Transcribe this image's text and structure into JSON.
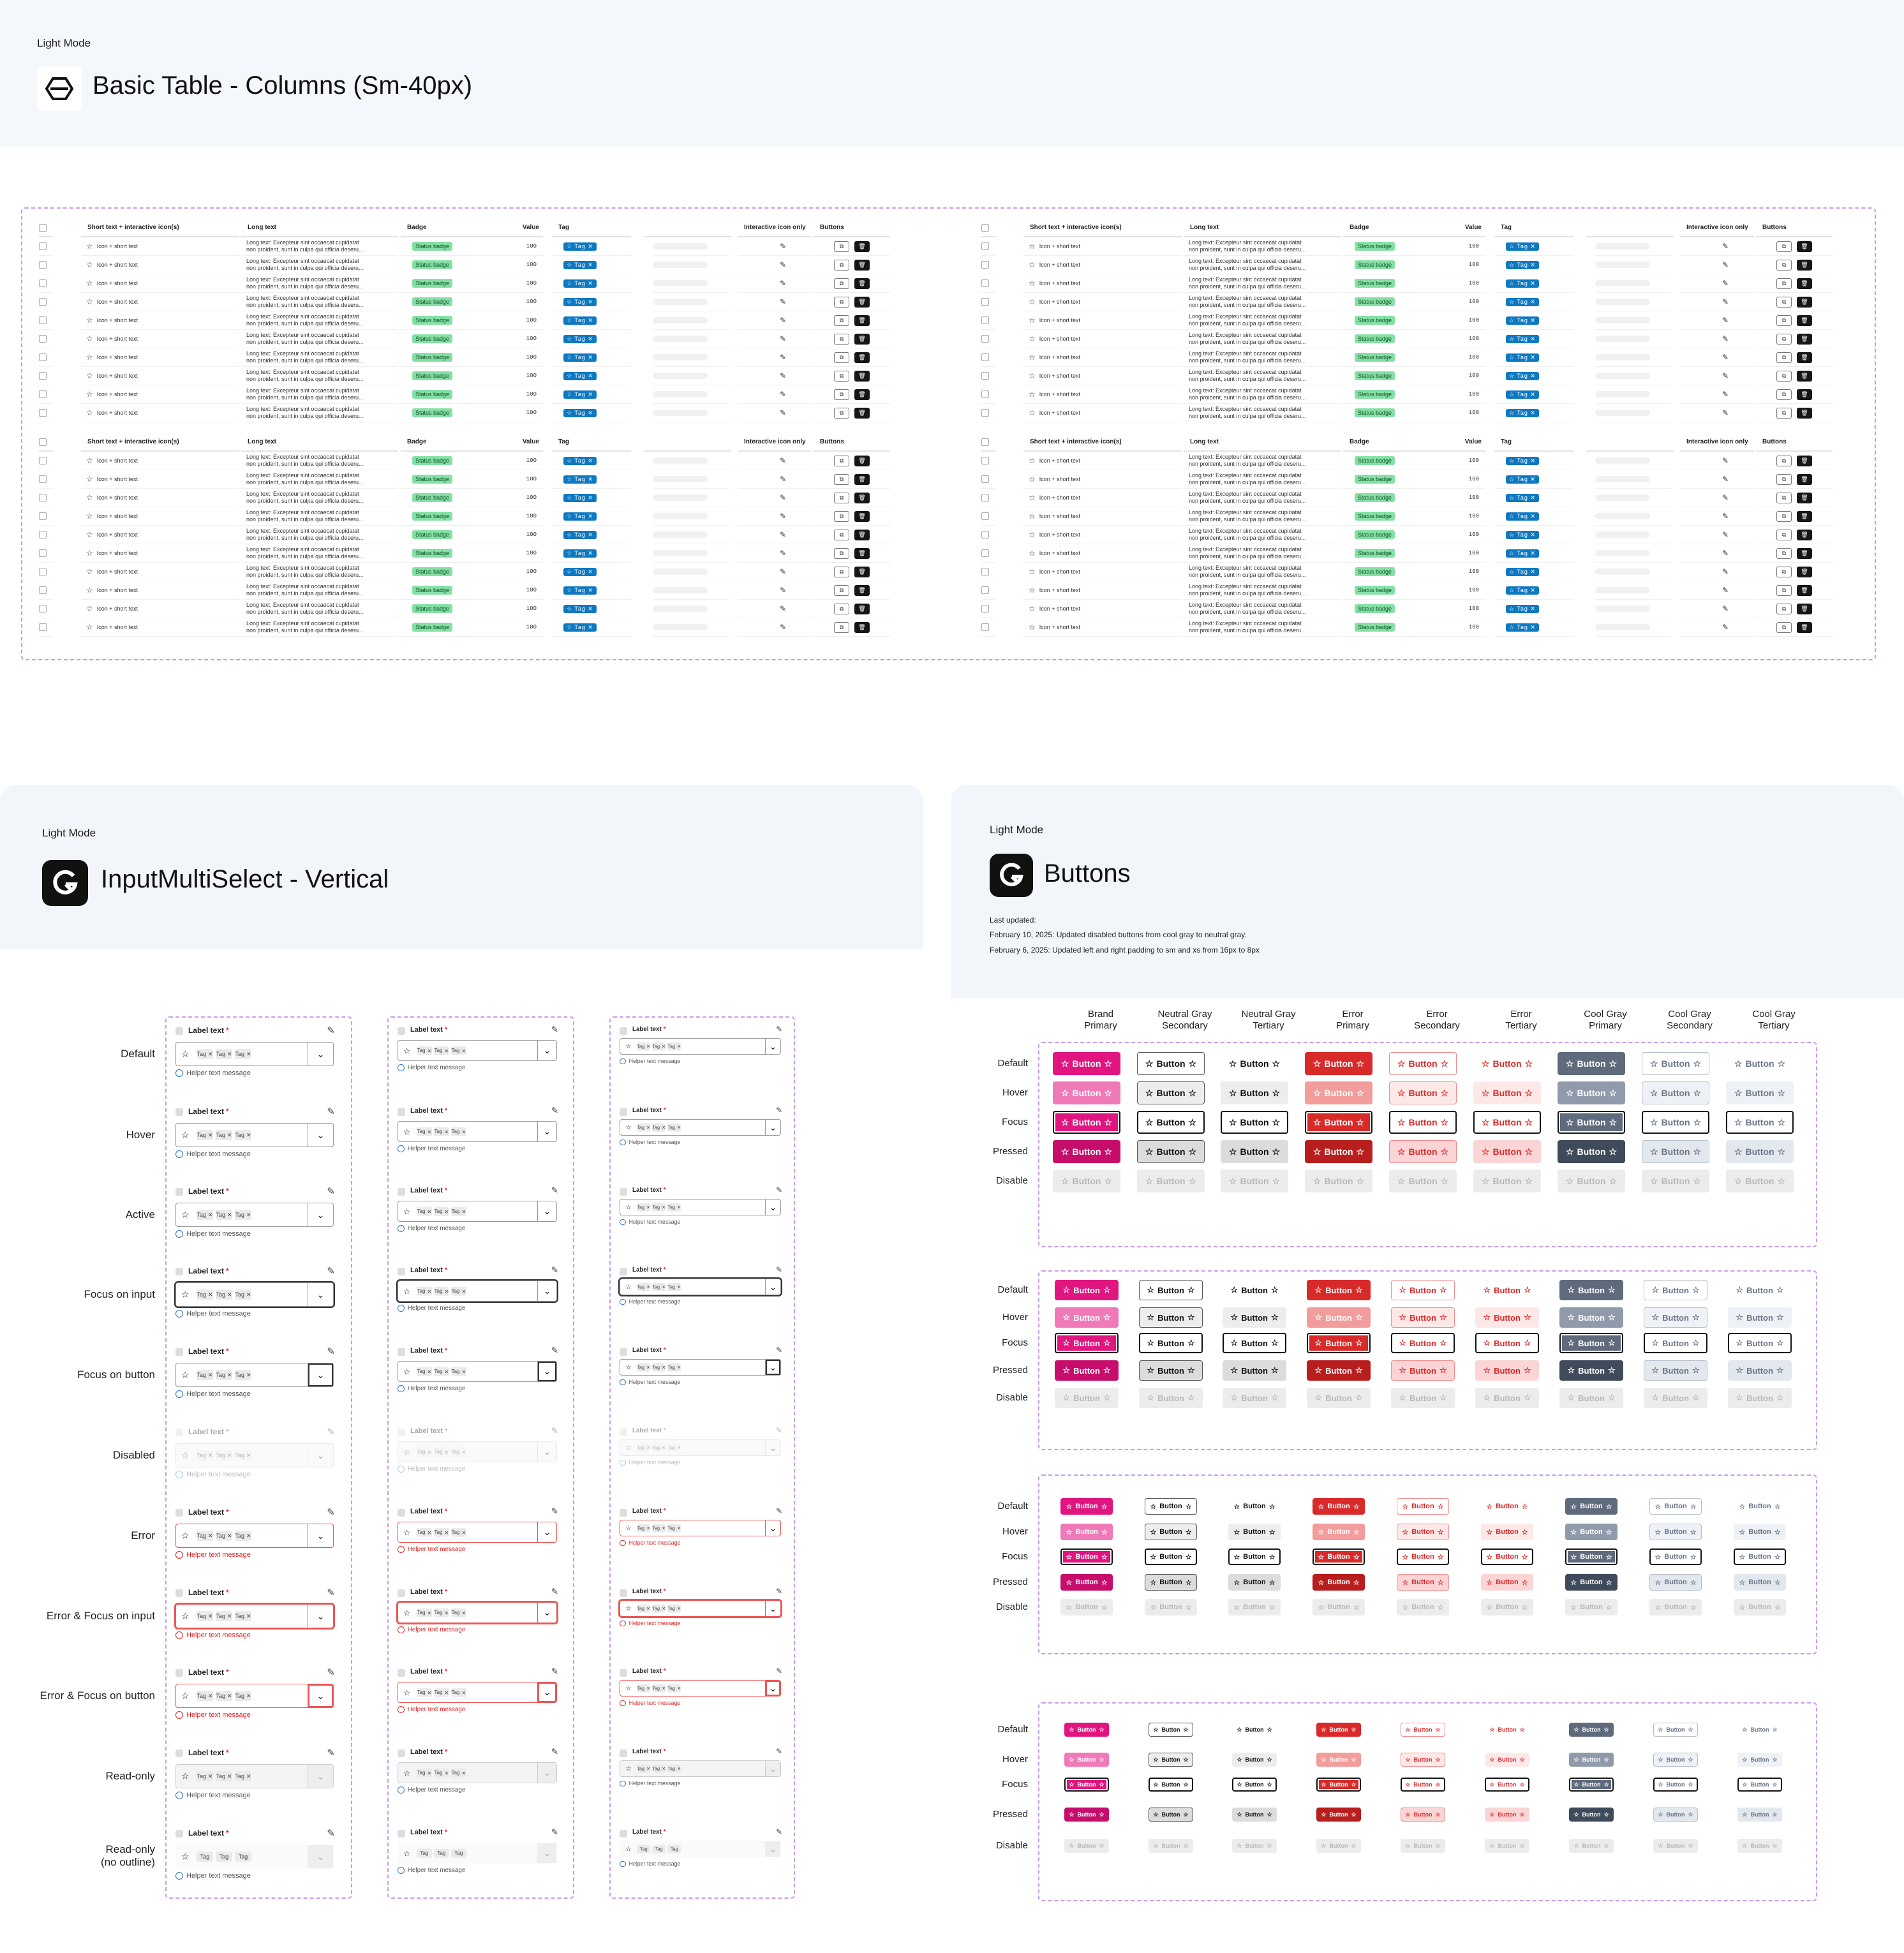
{
  "top": {
    "mode": "Light Mode",
    "title": "Basic Table - Columns (Sm-40px)"
  },
  "table": {
    "headers": [
      "Short text + interactive icon(s)",
      "Long text",
      "Badge",
      "Value",
      "Tag",
      "Interactive icon only",
      "Buttons"
    ],
    "cell_short": "Icon + short text",
    "cell_long_1": "Long text: Excepteur sint occaecat cupidatat",
    "cell_long_2": "non proident, sunt in culpa qui officia deseru...",
    "cell_badge": "Status badge",
    "cell_value": "100",
    "cell_tag": "Tag",
    "icons": {
      "star": "star-icon",
      "close": "x-icon",
      "edit": "pencil-icon",
      "copy": "copy-icon",
      "trash": "trash-icon"
    }
  },
  "ms": {
    "mode": "Light Mode",
    "title": "InputMultiSelect - Vertical",
    "label": "Label text",
    "required": "*",
    "tag": "Tag",
    "helper": "Helper text message",
    "states": [
      "Default",
      "Hover",
      "Active",
      "Focus on input",
      "Focus on button",
      "Disabled",
      "Error",
      "Error & Focus on input",
      "Error & Focus on button",
      "Read-only",
      "Read-only",
      "(no outline)"
    ]
  },
  "buttons": {
    "mode": "Light Mode",
    "title": "Buttons",
    "updated_label": "Last updated:",
    "note_1": "February 10, 2025: Updated disabled buttons from cool gray to neutral gray.",
    "note_2": "February 6, 2025: Updated left and right padding to sm and xs from 16px to 8px",
    "columns": [
      [
        "Brand",
        "Primary"
      ],
      [
        "Neutral Gray",
        "Secondary"
      ],
      [
        "Neutral Gray",
        "Tertiary"
      ],
      [
        "Error",
        "Primary"
      ],
      [
        "Error",
        "Secondary"
      ],
      [
        "Error",
        "Tertiary"
      ],
      [
        "Cool Gray",
        "Primary"
      ],
      [
        "Cool Gray",
        "Secondary"
      ],
      [
        "Cool Gray",
        "Tertiary"
      ]
    ],
    "states": [
      "Default",
      "Hover",
      "Focus",
      "Pressed",
      "Disable"
    ],
    "label": "Button",
    "colors": {
      "brand": "#e0157f",
      "brand_hover": "#f07ab8",
      "brand_pressed": "#c60d6c",
      "error": "#d92a2a",
      "error_hover": "#f29c9c",
      "coolgray": "#5f6b7d",
      "coolgray_hover": "#8f9aab",
      "disabled_bg": "#ececec",
      "disabled_fg": "#b8b8b8"
    }
  }
}
